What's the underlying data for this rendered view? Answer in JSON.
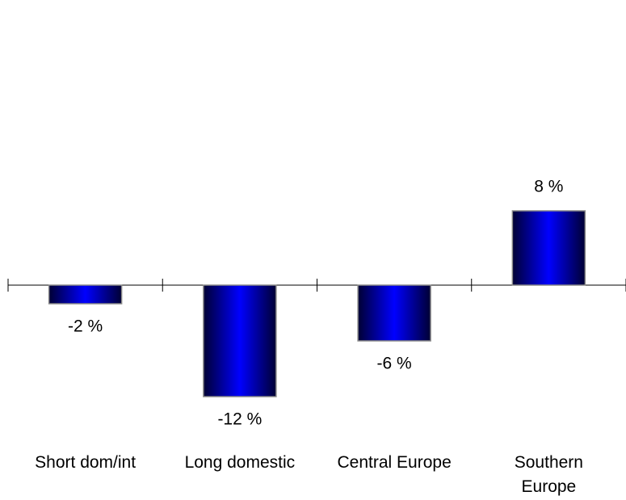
{
  "chart_data": {
    "type": "bar",
    "categories": [
      "Short dom/int",
      "Long domestic",
      "Central Europe",
      "Southern Europe"
    ],
    "values": [
      -2,
      -12,
      -6,
      8
    ],
    "value_labels": [
      "-2 %",
      "-12 %",
      "-6 %",
      "8 %"
    ],
    "color": "#0000ff"
  }
}
